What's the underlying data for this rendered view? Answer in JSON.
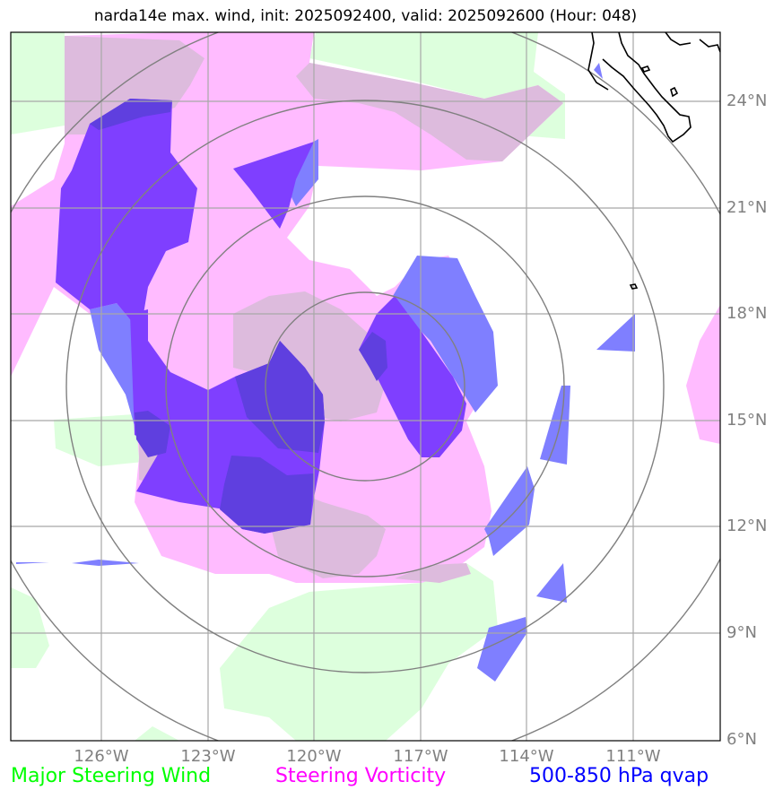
{
  "title": "narda14e max. wind, init: 2025092400, valid: 2025092600 (Hour: 048)",
  "lat_labels": [
    "24°N",
    "21°N",
    "18°N",
    "15°N",
    "12°N",
    "9°N",
    "6°N"
  ],
  "lon_labels": [
    "126°W",
    "123°W",
    "120°W",
    "117°W",
    "114°W",
    "111°W"
  ],
  "legend": [
    {
      "label": "Major Steering Wind",
      "color": "#00ff00"
    },
    {
      "label": "Steering Vorticity",
      "color": "#ff00ff"
    },
    {
      "label": "500-850 hPa qvap",
      "color": "#0000ff"
    }
  ],
  "layer_colors": {
    "steering_wind": "#ddffdd",
    "steering_vorticity": "#ffbbff",
    "overlap": "#ddbbdd",
    "qvap_light": "#7f7fff",
    "qvap_mid": "#7f3fff",
    "qvap_dark": "#5f3fdf",
    "grid": "#a8a8a8",
    "range_rings": "#808080",
    "coastline": "#000000"
  }
}
